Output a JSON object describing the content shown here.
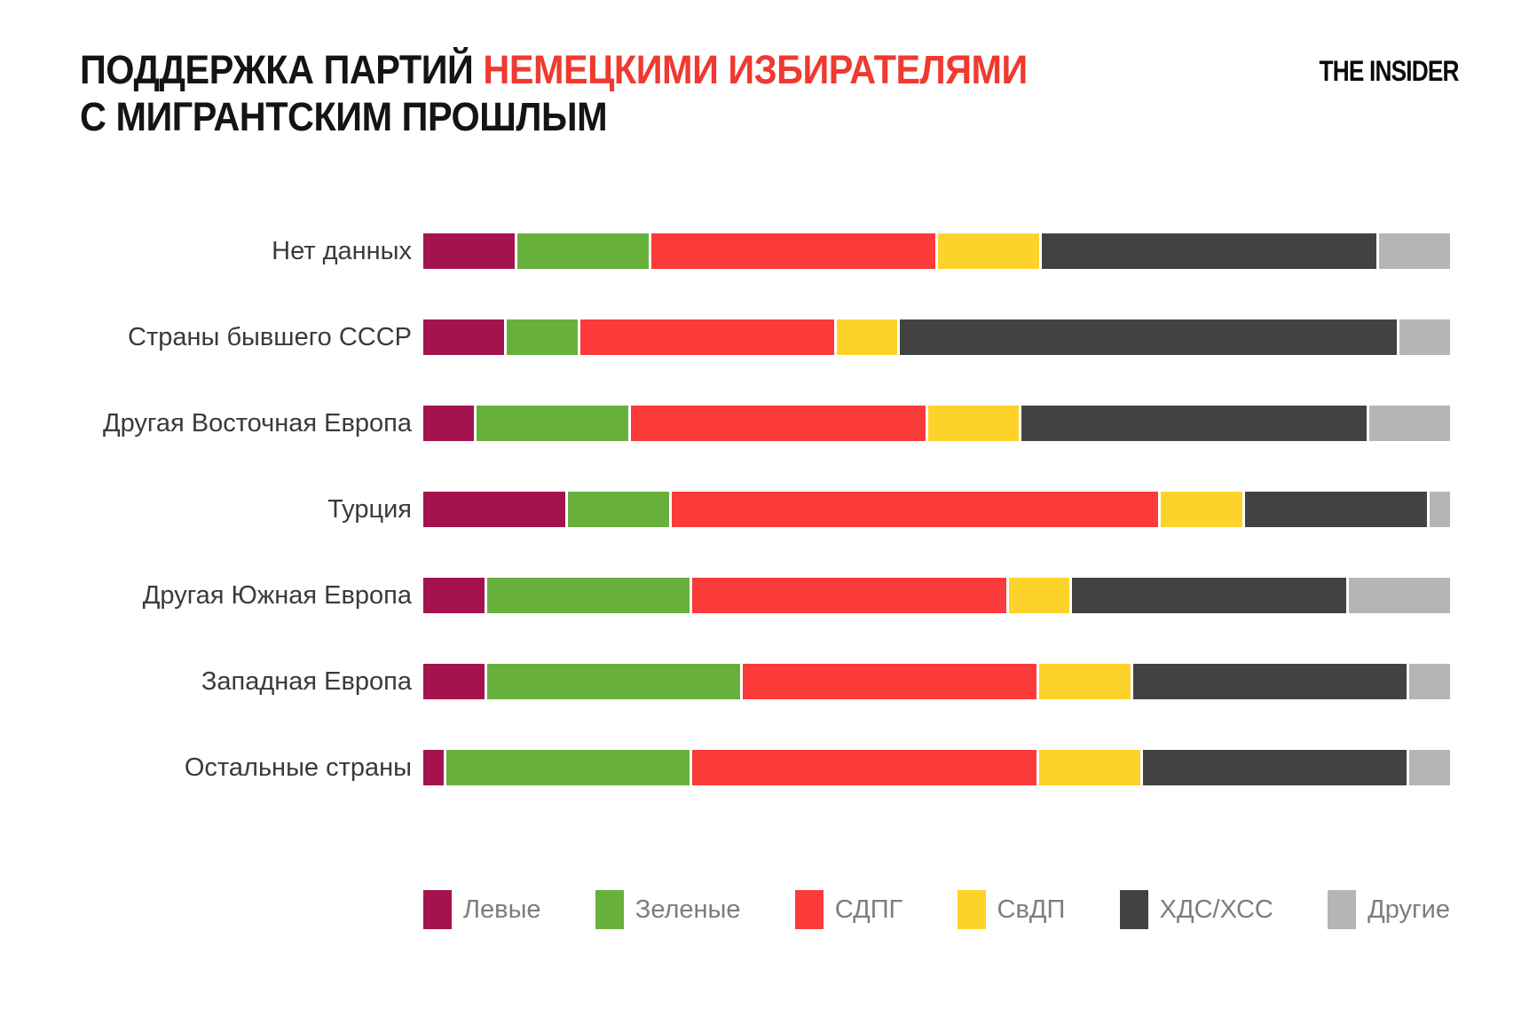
{
  "header": {
    "title_black_part": "ПОДДЕРЖКА ПАРТИЙ ",
    "title_red_part": "НЕМЕЦКИМИ ИЗБИРАТЕЛЯМИ",
    "title_line2": "С МИГРАНТСКИМ ПРОШЛЫМ",
    "logo_text": "THE INSIDER"
  },
  "colors": {
    "title_accent_red": "#f0392f",
    "label_text": "#3a3a3a",
    "legend_text": "#7d7d7d",
    "left": "#a5134e",
    "greens": "#67b03c",
    "spd": "#fb3a3a",
    "fdp": "#fdd32b",
    "cdu_csu": "#424242",
    "others": "#b5b5b5"
  },
  "chart_data": {
    "type": "bar",
    "orientation": "horizontal",
    "stacked": true,
    "unit": "percent",
    "xlim": [
      0,
      100
    ],
    "grid": false,
    "legend_position": "bottom",
    "title": "ПОДДЕРЖКА ПАРТИЙ НЕМЕЦКИМИ ИЗБИРАТЕЛЯМИ С МИГРАНТСКИМ ПРОШЛЫМ",
    "categories": [
      "Нет данных",
      "Страны бывшего СССР",
      "Другая Восточная Европа",
      "Турция",
      "Другая Южная Европа",
      "Западная Европа",
      "Остальные страны"
    ],
    "series": [
      {
        "key": "left",
        "name": "Левые",
        "color": "#a5134e",
        "values": [
          9,
          8,
          5,
          14,
          6,
          6,
          2
        ]
      },
      {
        "key": "greens",
        "name": "Зеленые",
        "color": "#67b03c",
        "values": [
          13,
          7,
          15,
          10,
          20,
          25,
          24
        ]
      },
      {
        "key": "spd",
        "name": "СДПГ",
        "color": "#fb3a3a",
        "values": [
          28,
          25,
          29,
          48,
          31,
          29,
          34
        ]
      },
      {
        "key": "fdp",
        "name": "СвДП",
        "color": "#fdd32b",
        "values": [
          10,
          6,
          9,
          8,
          6,
          9,
          10
        ]
      },
      {
        "key": "cdu_csu",
        "name": "ХДС/ХСС",
        "color": "#424242",
        "values": [
          33,
          49,
          34,
          18,
          27,
          27,
          26
        ]
      },
      {
        "key": "others",
        "name": "Другие",
        "color": "#b5b5b5",
        "values": [
          7,
          5,
          8,
          2,
          10,
          4,
          4
        ]
      }
    ]
  }
}
